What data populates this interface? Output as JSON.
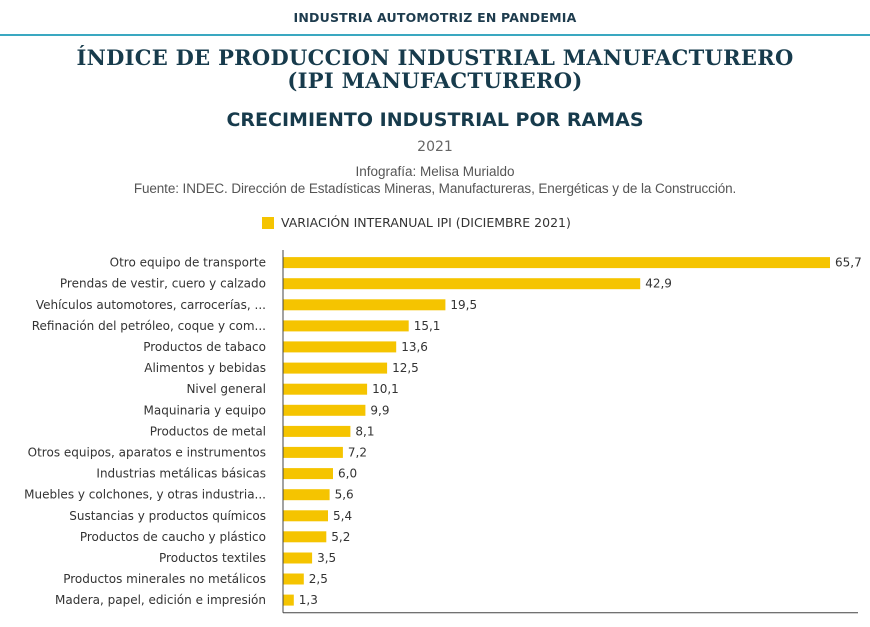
{
  "header": {
    "section_label": "INDUSTRIA AUTOMOTRIZ EN PANDEMIA"
  },
  "title_line1": "ÍNDICE DE PRODUCCION INDUSTRIAL MANUFACTURERO",
  "title_line2": "(IPI MANUFACTURERO)",
  "subtitle": "CRECIMIENTO INDUSTRIAL POR RAMAS",
  "year": "2021",
  "credit": "Infografía: Melisa Murialdo",
  "source": "Fuente: INDEC. Dirección de Estadísticas Mineras, Manufactureras, Energéticas y de la Construcción.",
  "colors": {
    "bar": "#f5c400",
    "title": "#173b4c",
    "accent_line": "#3aa8c1"
  },
  "chart_data": {
    "type": "bar",
    "orientation": "horizontal",
    "legend": "top",
    "grid": false,
    "xlim": [
      0,
      67
    ],
    "series": [
      {
        "name": "VARIACIÓN INTERANUAL IPI (DICIEMBRE 2021)",
        "values": [
          65.7,
          42.9,
          19.5,
          15.1,
          13.6,
          12.5,
          10.1,
          9.9,
          8.1,
          7.2,
          6.0,
          5.6,
          5.4,
          5.2,
          3.5,
          2.5,
          1.3
        ]
      }
    ],
    "categories": [
      "Otro equipo de transporte",
      "Prendas de vestir, cuero y calzado",
      "Vehículos automotores, carrocerías, ...",
      "Refinación del petróleo, coque y com...",
      "Productos de tabaco",
      "Alimentos y bebidas",
      "Nivel general",
      "Maquinaria y equipo",
      "Productos de metal",
      "Otros equipos, aparatos e instrumentos",
      "Industrias metálicas básicas",
      "Muebles y colchones, y otras industria...",
      "Sustancias y productos químicos",
      "Productos de caucho y plástico",
      "Productos textiles",
      "Productos minerales no metálicos",
      "Madera, papel, edición e impresión"
    ],
    "value_labels": [
      "65,7",
      "42,9",
      "19,5",
      "15,1",
      "13,6",
      "12,5",
      "10,1",
      "9,9",
      "8,1",
      "7,2",
      "6,0",
      "5,6",
      "5,4",
      "5,2",
      "3,5",
      "2,5",
      "1,3"
    ]
  }
}
